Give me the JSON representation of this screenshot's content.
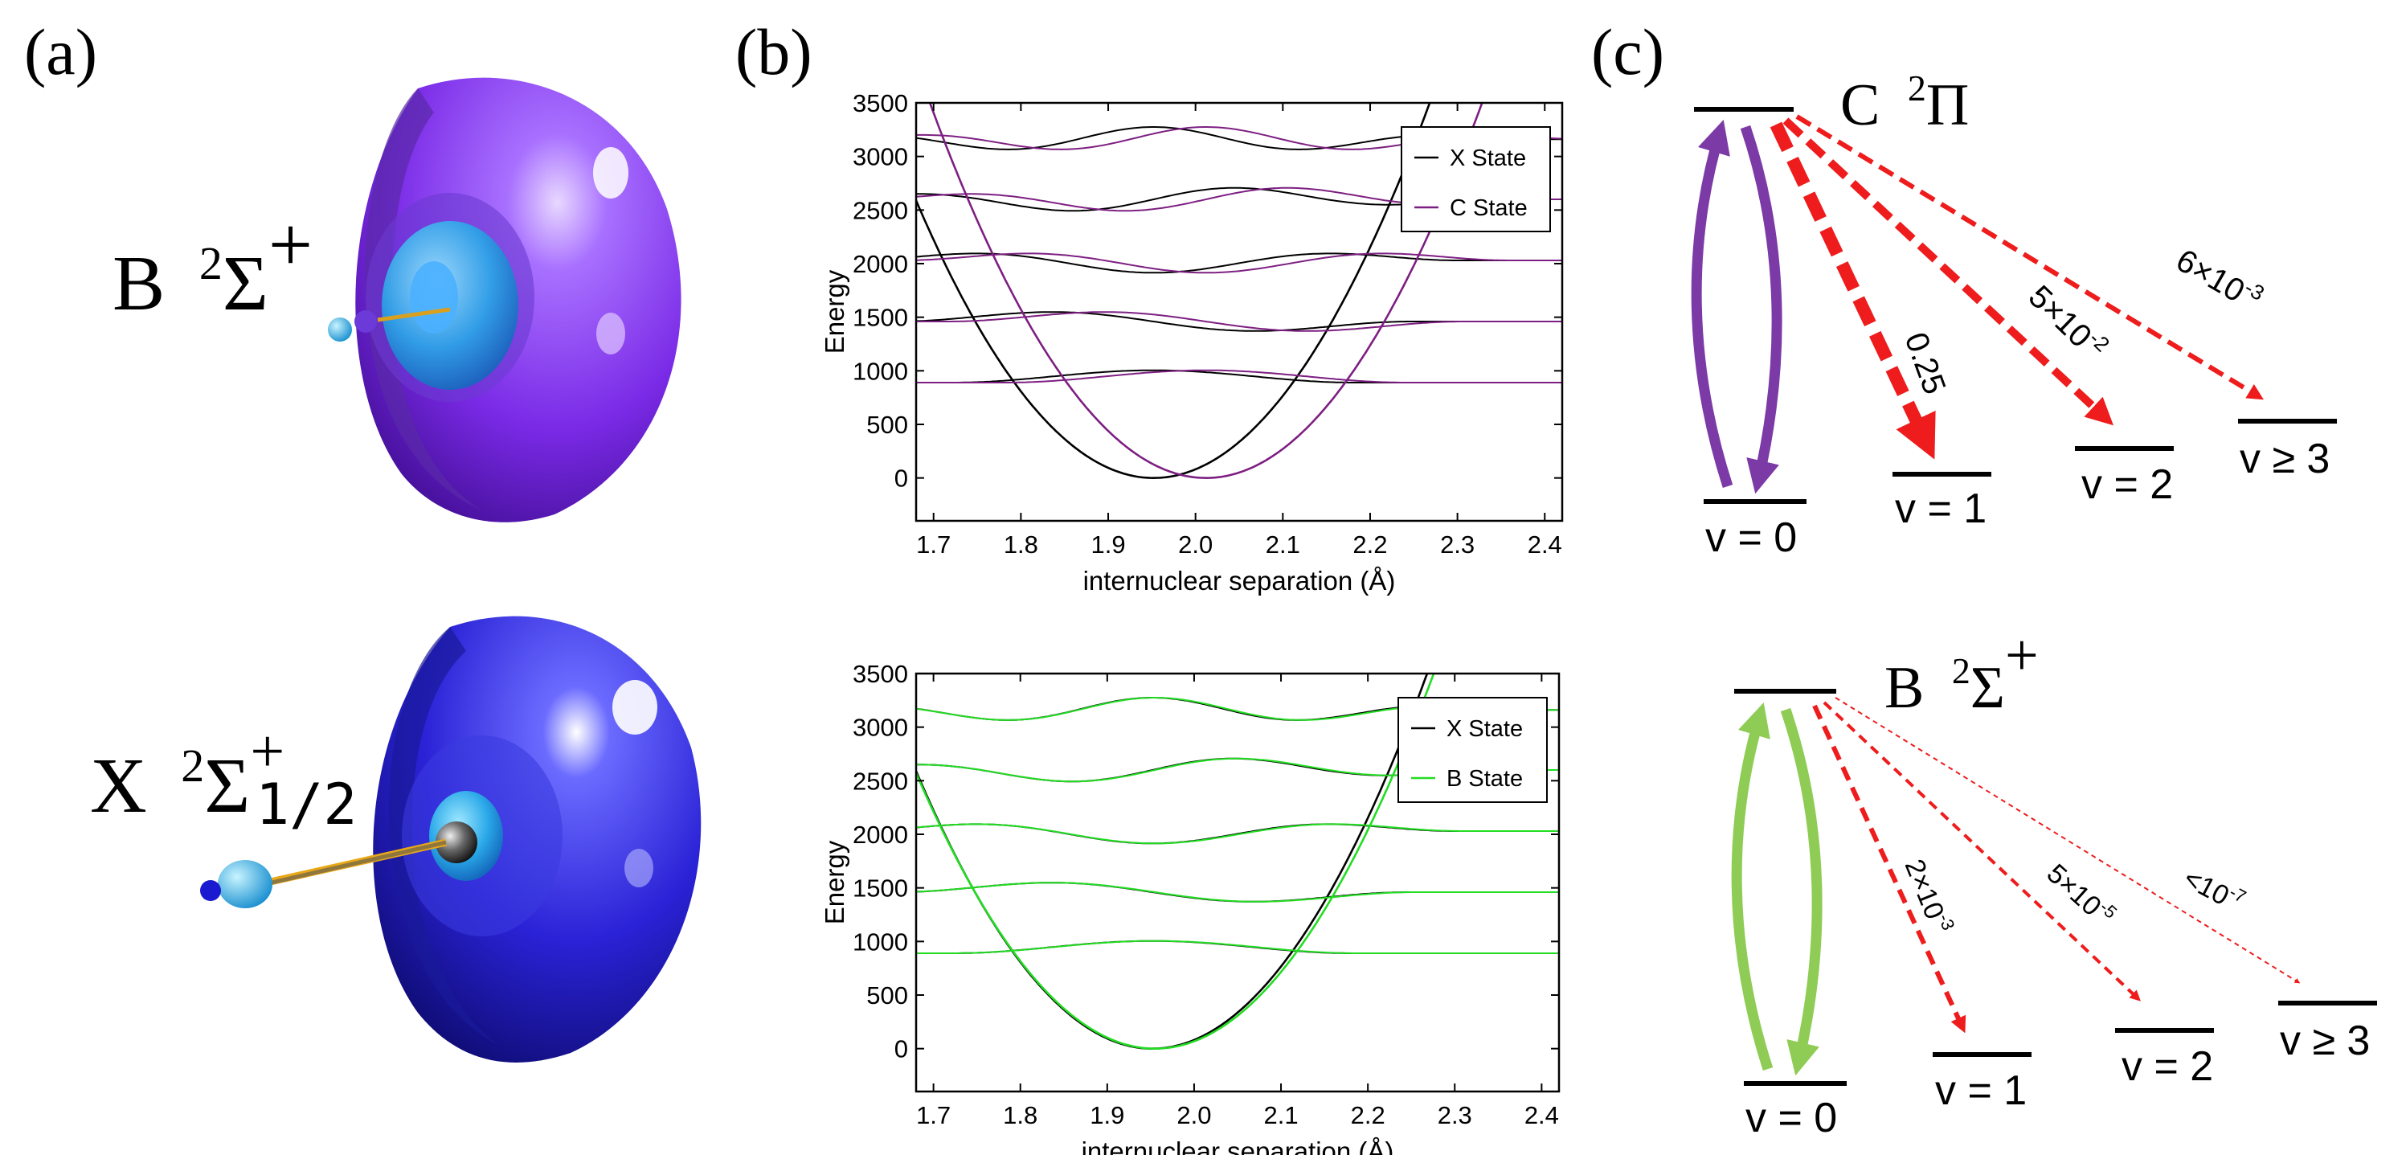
{
  "panel_labels": {
    "a": "(a)",
    "b": "(b)",
    "c": "(c)"
  },
  "states_a": {
    "top": {
      "letter": "B",
      "sup": "2",
      "sym": "Σ",
      "plus": "+",
      "sub": ""
    },
    "bottom": {
      "letter": "X",
      "sup": "2",
      "sym": "Σ",
      "plus": "+",
      "sub": "1/2"
    }
  },
  "chart_data": [
    {
      "type": "line",
      "title": "",
      "xlabel": "internuclear separation (Å)",
      "ylabel": "Energy",
      "xlim": [
        1.68,
        2.42
      ],
      "ylim": [
        -400,
        3500
      ],
      "xticks": [
        "1.7",
        "1.8",
        "1.9",
        "2.0",
        "2.1",
        "2.2",
        "2.3",
        "2.4"
      ],
      "yticks": [
        "0",
        "500",
        "1000",
        "1500",
        "2000",
        "2500",
        "3000",
        "3500"
      ],
      "legend": [
        "X State",
        "C State"
      ],
      "legend_position": "top-right",
      "series": [
        {
          "name": "X State",
          "color": "#000000",
          "potential": {
            "re": 1.952,
            "k": 35000,
            "min_energy": 0
          },
          "levels": [
            890,
            1460,
            2030,
            2600,
            3160
          ]
        },
        {
          "name": "C State",
          "color": "#7d1f82",
          "potential": {
            "re": 2.012,
            "k": 35000,
            "min_energy": 0
          },
          "levels": [
            890,
            1460,
            2030,
            2600,
            3160
          ]
        }
      ]
    },
    {
      "type": "line",
      "title": "",
      "xlabel": "internuclear separation (Å)",
      "ylabel": "Energy",
      "xlim": [
        1.68,
        2.42
      ],
      "ylim": [
        -400,
        3500
      ],
      "xticks": [
        "1.7",
        "1.8",
        "1.9",
        "2.0",
        "2.1",
        "2.2",
        "2.3",
        "2.4"
      ],
      "yticks": [
        "0",
        "500",
        "1000",
        "1500",
        "2000",
        "2500",
        "3000",
        "3500"
      ],
      "legend": [
        "X State",
        "B State"
      ],
      "legend_position": "top-right",
      "series": [
        {
          "name": "X State",
          "color": "#000000",
          "potential": {
            "re": 1.952,
            "k": 35000,
            "min_energy": 0
          },
          "levels": [
            890,
            1460,
            2030,
            2600,
            3160
          ]
        },
        {
          "name": "B State",
          "color": "#22dd22",
          "potential": {
            "re": 1.955,
            "k": 34000,
            "min_energy": 0
          },
          "levels": [
            890,
            1460,
            2030,
            2600,
            3160
          ]
        }
      ]
    }
  ],
  "diagram_c": {
    "top": {
      "state": {
        "letter": "C",
        "sup": "2",
        "sym": "Π",
        "plus": ""
      },
      "color": "#7b3aa6",
      "levels": [
        "v = 0",
        "v = 1",
        "v = 2",
        "v ≥ 3"
      ],
      "branching": [
        "0.25",
        "5×10",
        "6×10"
      ],
      "branching_exp": [
        "",
        "-2",
        "-3"
      ]
    },
    "bottom": {
      "state": {
        "letter": "B",
        "sup": "2",
        "sym": "Σ",
        "plus": "+"
      },
      "color": "#8fcc55",
      "levels": [
        "v = 0",
        "v = 1",
        "v = 2",
        "v ≥ 3"
      ],
      "branching": [
        "2×10",
        "5×10",
        "<10"
      ],
      "branching_exp": [
        "-3",
        "-5",
        "-7"
      ]
    }
  }
}
